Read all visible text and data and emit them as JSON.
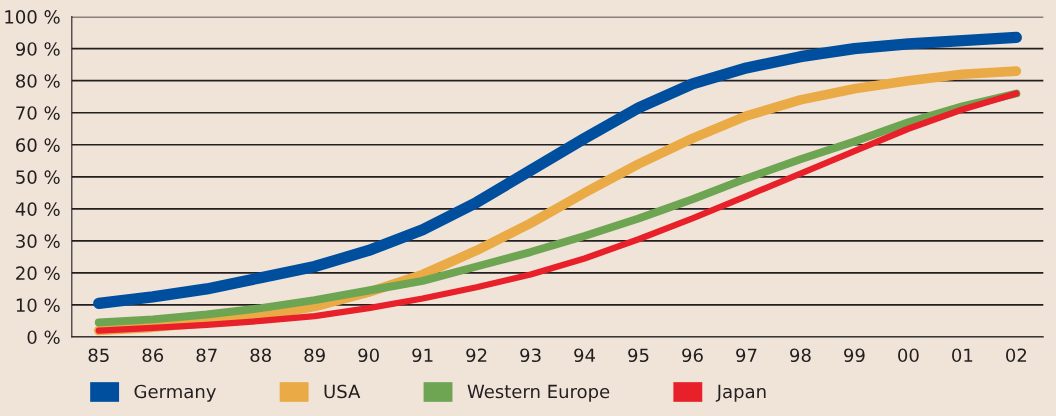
{
  "chart_data": {
    "type": "line",
    "categories": [
      "85",
      "86",
      "87",
      "88",
      "89",
      "90",
      "91",
      "92",
      "93",
      "94",
      "95",
      "96",
      "97",
      "98",
      "99",
      "00",
      "01",
      "02"
    ],
    "series": [
      {
        "name": "Germany",
        "color": "#004f9f",
        "values": [
          10.5,
          12.5,
          15,
          18.5,
          22,
          27,
          33.5,
          42,
          52,
          62,
          71.5,
          79,
          84,
          87.5,
          90,
          91.5,
          92.5,
          93.5
        ]
      },
      {
        "name": "USA",
        "color": "#eaaa45",
        "values": [
          2,
          3,
          4.5,
          6.5,
          9.5,
          14,
          19.5,
          27,
          35.5,
          45,
          54,
          62,
          69,
          74,
          77.5,
          80,
          82,
          83
        ]
      },
      {
        "name": "Western Europe",
        "color": "#6ea552",
        "values": [
          4.5,
          5.5,
          7,
          9,
          11.5,
          14.5,
          17.5,
          22,
          26.5,
          31.5,
          37,
          43,
          49.5,
          55.5,
          61,
          67,
          72,
          76
        ]
      },
      {
        "name": "Japan",
        "color": "#e8202a",
        "values": [
          2,
          2.8,
          3.8,
          5,
          6.5,
          9,
          12,
          15.5,
          19.5,
          24.5,
          30.5,
          37,
          44,
          51,
          58,
          65,
          71,
          76
        ]
      }
    ],
    "ylim": [
      0,
      100
    ],
    "yticks": [
      {
        "value": 0,
        "label": "0 %"
      },
      {
        "value": 10,
        "label": "10 %"
      },
      {
        "value": 20,
        "label": "20 %"
      },
      {
        "value": 30,
        "label": "30 %"
      },
      {
        "value": 40,
        "label": "40 %"
      },
      {
        "value": 50,
        "label": "50 %"
      },
      {
        "value": 60,
        "label": "60 %"
      },
      {
        "value": 70,
        "label": "70 %"
      },
      {
        "value": 80,
        "label": "80 %"
      },
      {
        "value": 90,
        "label": "90 %"
      },
      {
        "value": 100,
        "label": "100 %"
      }
    ],
    "grid": "y",
    "legend": "bottom",
    "marker": "none",
    "line_style": "solid"
  }
}
